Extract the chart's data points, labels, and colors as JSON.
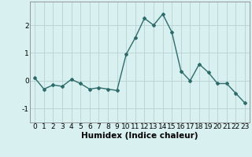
{
  "x": [
    0,
    1,
    2,
    3,
    4,
    5,
    6,
    7,
    8,
    9,
    10,
    11,
    12,
    13,
    14,
    15,
    16,
    17,
    18,
    19,
    20,
    21,
    22,
    23
  ],
  "y": [
    0.1,
    -0.3,
    -0.15,
    -0.2,
    0.05,
    -0.1,
    -0.3,
    -0.25,
    -0.3,
    -0.35,
    0.95,
    1.55,
    2.25,
    2.0,
    2.4,
    1.75,
    0.35,
    0.0,
    0.6,
    0.3,
    -0.1,
    -0.1,
    -0.45,
    -0.8
  ],
  "line_color": "#2e6b6b",
  "marker": "D",
  "marker_size": 2.0,
  "bg_color": "#d9f0f0",
  "grid_color": "#b8d0d0",
  "xlabel": "Humidex (Indice chaleur)",
  "xlim": [
    -0.5,
    23.5
  ],
  "ylim": [
    -1.5,
    2.85
  ],
  "yticks": [
    -1,
    0,
    1,
    2
  ],
  "xticks": [
    0,
    1,
    2,
    3,
    4,
    5,
    6,
    7,
    8,
    9,
    10,
    11,
    12,
    13,
    14,
    15,
    16,
    17,
    18,
    19,
    20,
    21,
    22,
    23
  ],
  "tick_fontsize": 6.5,
  "xlabel_fontsize": 7.5,
  "line_width": 1.0
}
